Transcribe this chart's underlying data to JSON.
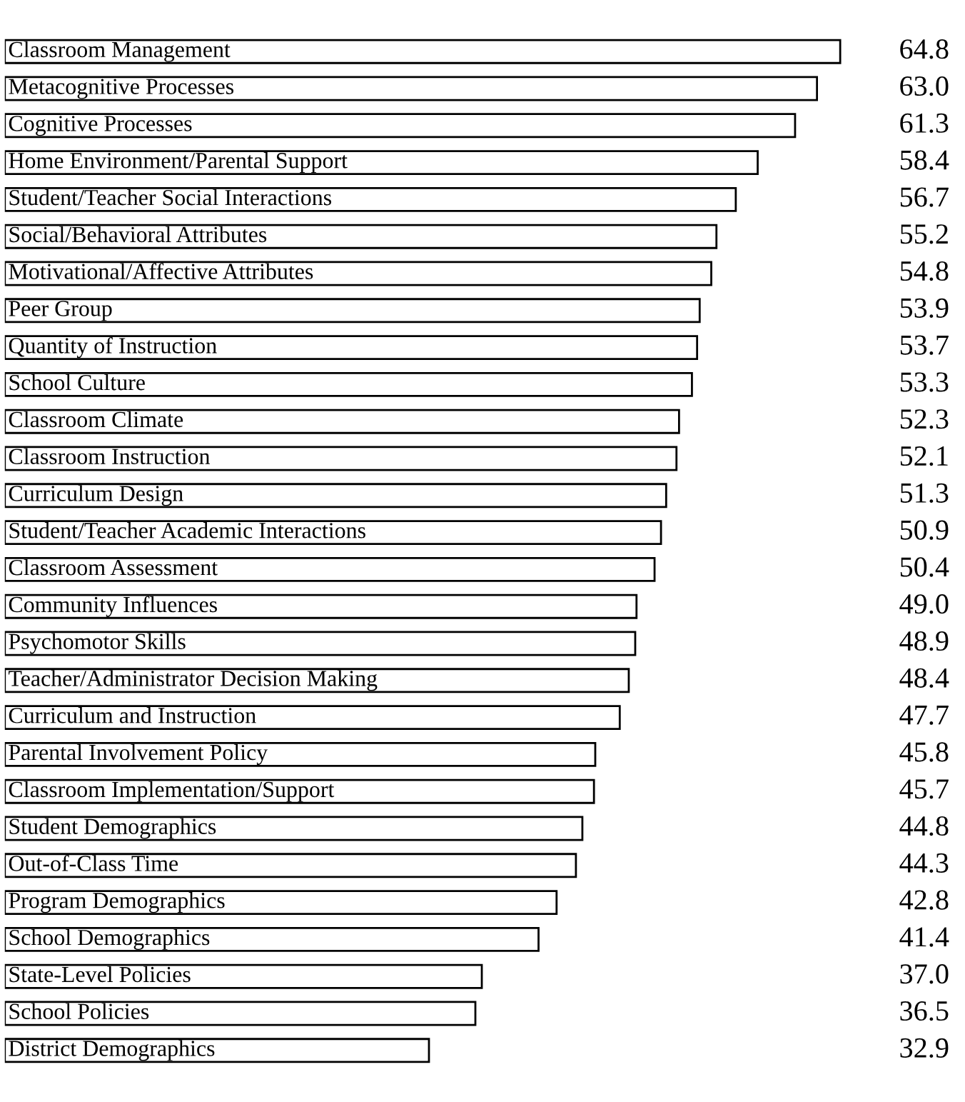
{
  "chart_data": {
    "type": "bar",
    "orientation": "horizontal",
    "tick_labels": false,
    "color": "#ffffff",
    "categories": [
      "Classroom Management",
      "Metacognitive Processes",
      "Cognitive Processes",
      "Home Environment/Parental Support",
      "Student/Teacher Social Interactions",
      "Social/Behavioral Attributes",
      "Motivational/Affective Attributes",
      "Peer Group",
      "Quantity of Instruction",
      "School Culture",
      "Classroom Climate",
      "Classroom Instruction",
      "Curriculum Design",
      "Student/Teacher Academic Interactions",
      "Classroom Assessment",
      "Community Influences",
      "Psychomotor Skills",
      "Teacher/Administrator Decision Making",
      "Curriculum and Instruction",
      "Parental Involvement Policy",
      "Classroom Implementation/Support",
      "Student Demographics",
      "Out-of-Class Time",
      "Program Demographics",
      "School Demographics",
      "State-Level Policies",
      "School Policies",
      "District Demographics"
    ],
    "values": [
      64.8,
      63.0,
      61.3,
      58.4,
      56.7,
      55.2,
      54.8,
      53.9,
      53.7,
      53.3,
      52.3,
      52.1,
      51.3,
      50.9,
      50.4,
      49.0,
      48.9,
      48.4,
      47.7,
      45.8,
      45.7,
      44.8,
      44.3,
      42.8,
      41.4,
      37.0,
      36.5,
      32.9
    ],
    "value_labels": [
      "64.8",
      "63.0",
      "61.3",
      "58.4",
      "56.7",
      "55.2",
      "54.8",
      "53.9",
      "53.7",
      "53.3",
      "52.3",
      "52.1",
      "51.3",
      "50.9",
      "50.4",
      "49.0",
      "48.9",
      "48.4",
      "47.7",
      "45.8",
      "45.7",
      "44.8",
      "44.3",
      "42.8",
      "41.4",
      "37.0",
      "36.5",
      "32.9"
    ]
  }
}
